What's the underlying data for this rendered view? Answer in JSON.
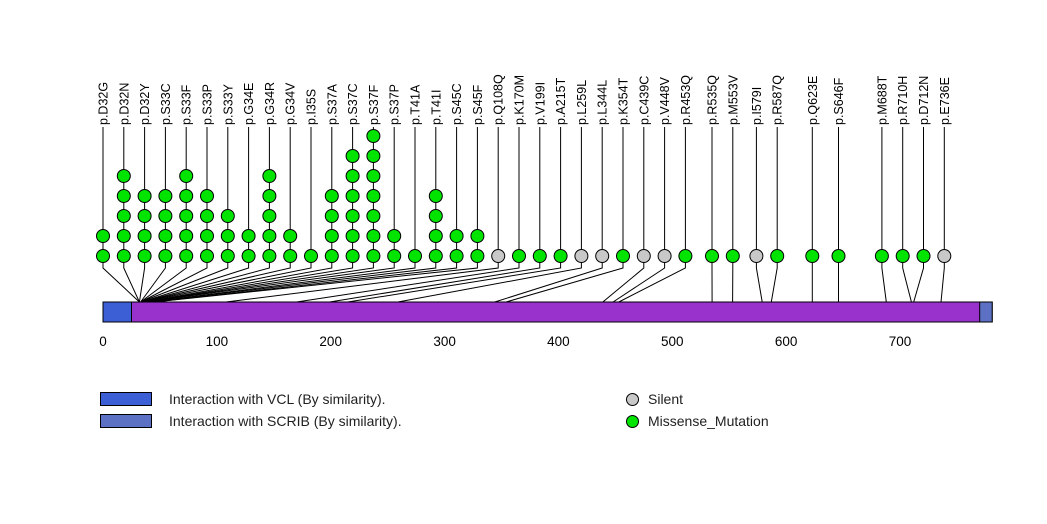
{
  "chart_data": {
    "type": "lollipop",
    "protein_length": 781,
    "xlim": [
      0,
      781
    ],
    "axis_ticks": [
      0,
      100,
      200,
      300,
      400,
      500,
      600,
      700
    ],
    "backbone_color": "#9932CC",
    "domains": [
      {
        "label": "Interaction with VCL (By similarity).",
        "start": 0,
        "end": 25,
        "color": "#3D5FD6"
      },
      {
        "label": "Interaction with SCRIB (By similarity).",
        "start": 770,
        "end": 781,
        "color": "#5C71C4"
      }
    ],
    "mutation_types": [
      {
        "id": "silent",
        "label": "Silent",
        "color": "#C8C8C8"
      },
      {
        "id": "missense",
        "label": "Missense_Mutation",
        "color": "#00E400"
      }
    ],
    "mutations": [
      {
        "label": "p.D32G",
        "position": 32,
        "count": 2,
        "type": "missense"
      },
      {
        "label": "p.D32N",
        "position": 32,
        "count": 5,
        "type": "missense"
      },
      {
        "label": "p.D32Y",
        "position": 32,
        "count": 4,
        "type": "missense"
      },
      {
        "label": "p.S33C",
        "position": 33,
        "count": 4,
        "type": "missense"
      },
      {
        "label": "p.S33F",
        "position": 33,
        "count": 5,
        "type": "missense"
      },
      {
        "label": "p.S33P",
        "position": 33,
        "count": 4,
        "type": "missense"
      },
      {
        "label": "p.S33Y",
        "position": 33,
        "count": 3,
        "type": "missense"
      },
      {
        "label": "p.G34E",
        "position": 34,
        "count": 2,
        "type": "missense"
      },
      {
        "label": "p.G34R",
        "position": 34,
        "count": 5,
        "type": "missense"
      },
      {
        "label": "p.G34V",
        "position": 34,
        "count": 2,
        "type": "missense"
      },
      {
        "label": "p.I35S",
        "position": 35,
        "count": 1,
        "type": "missense"
      },
      {
        "label": "p.S37A",
        "position": 37,
        "count": 4,
        "type": "missense"
      },
      {
        "label": "p.S37C",
        "position": 37,
        "count": 6,
        "type": "missense"
      },
      {
        "label": "p.S37F",
        "position": 37,
        "count": 7,
        "type": "missense"
      },
      {
        "label": "p.S37P",
        "position": 37,
        "count": 2,
        "type": "missense"
      },
      {
        "label": "p.T41A",
        "position": 41,
        "count": 1,
        "type": "missense"
      },
      {
        "label": "p.T41I",
        "position": 41,
        "count": 4,
        "type": "missense"
      },
      {
        "label": "p.S45C",
        "position": 45,
        "count": 2,
        "type": "missense"
      },
      {
        "label": "p.S45F",
        "position": 45,
        "count": 2,
        "type": "missense"
      },
      {
        "label": "p.Q108Q",
        "position": 108,
        "count": 1,
        "type": "silent"
      },
      {
        "label": "p.K170M",
        "position": 170,
        "count": 1,
        "type": "missense"
      },
      {
        "label": "p.V199I",
        "position": 199,
        "count": 1,
        "type": "missense"
      },
      {
        "label": "p.A215T",
        "position": 215,
        "count": 1,
        "type": "missense"
      },
      {
        "label": "p.L259L",
        "position": 259,
        "count": 1,
        "type": "silent"
      },
      {
        "label": "p.L344L",
        "position": 344,
        "count": 1,
        "type": "silent"
      },
      {
        "label": "p.K354T",
        "position": 354,
        "count": 1,
        "type": "missense"
      },
      {
        "label": "p.C439C",
        "position": 439,
        "count": 1,
        "type": "silent"
      },
      {
        "label": "p.V448V",
        "position": 448,
        "count": 1,
        "type": "silent"
      },
      {
        "label": "p.R453Q",
        "position": 453,
        "count": 1,
        "type": "missense"
      },
      {
        "label": "p.R535Q",
        "position": 535,
        "count": 1,
        "type": "missense"
      },
      {
        "label": "p.M553V",
        "position": 553,
        "count": 1,
        "type": "missense"
      },
      {
        "label": "p.I579I",
        "position": 579,
        "count": 1,
        "type": "silent"
      },
      {
        "label": "p.R587Q",
        "position": 587,
        "count": 1,
        "type": "missense"
      },
      {
        "label": "p.Q623E",
        "position": 623,
        "count": 1,
        "type": "missense"
      },
      {
        "label": "p.S646F",
        "position": 646,
        "count": 1,
        "type": "missense"
      },
      {
        "label": "p.M688T",
        "position": 688,
        "count": 1,
        "type": "missense"
      },
      {
        "label": "p.R710H",
        "position": 710,
        "count": 1,
        "type": "missense"
      },
      {
        "label": "p.D712N",
        "position": 712,
        "count": 1,
        "type": "missense"
      },
      {
        "label": "p.E736E",
        "position": 736,
        "count": 1,
        "type": "silent"
      }
    ],
    "legend": {
      "domain_items": [
        {
          "label": "Interaction with VCL (By similarity).",
          "color": "#3D5FD6"
        },
        {
          "label": "Interaction with SCRIB (By similarity).",
          "color": "#5C71C4"
        }
      ],
      "type_items": [
        {
          "label": "Silent",
          "color": "#C8C8C8"
        },
        {
          "label": "Missense_Mutation",
          "color": "#00E400"
        }
      ]
    }
  }
}
